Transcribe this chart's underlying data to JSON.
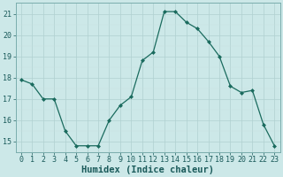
{
  "x": [
    0,
    1,
    2,
    3,
    4,
    5,
    6,
    7,
    8,
    9,
    10,
    11,
    12,
    13,
    14,
    15,
    16,
    17,
    18,
    19,
    20,
    21,
    22,
    23
  ],
  "y": [
    17.9,
    17.7,
    17.0,
    17.0,
    15.5,
    14.8,
    14.8,
    14.8,
    16.0,
    16.7,
    17.1,
    18.8,
    19.2,
    21.1,
    21.1,
    20.6,
    20.3,
    19.7,
    19.0,
    17.6,
    17.3,
    17.4,
    15.8,
    14.8
  ],
  "line_color": "#1a6b5e",
  "marker": "D",
  "marker_size": 2.0,
  "bg_color": "#cce8e8",
  "grid_major_color": "#b0d0d0",
  "grid_minor_color": "#c8e0e0",
  "xlabel": "Humidex (Indice chaleur)",
  "xlabel_fontsize": 7.5,
  "tick_fontsize": 6.0,
  "ylim": [
    14.5,
    21.5
  ],
  "xlim": [
    -0.5,
    23.5
  ],
  "yticks": [
    15,
    16,
    17,
    18,
    19,
    20,
    21
  ],
  "xticks": [
    0,
    1,
    2,
    3,
    4,
    5,
    6,
    7,
    8,
    9,
    10,
    11,
    12,
    13,
    14,
    15,
    16,
    17,
    18,
    19,
    20,
    21,
    22,
    23
  ],
  "linewidth": 0.9
}
